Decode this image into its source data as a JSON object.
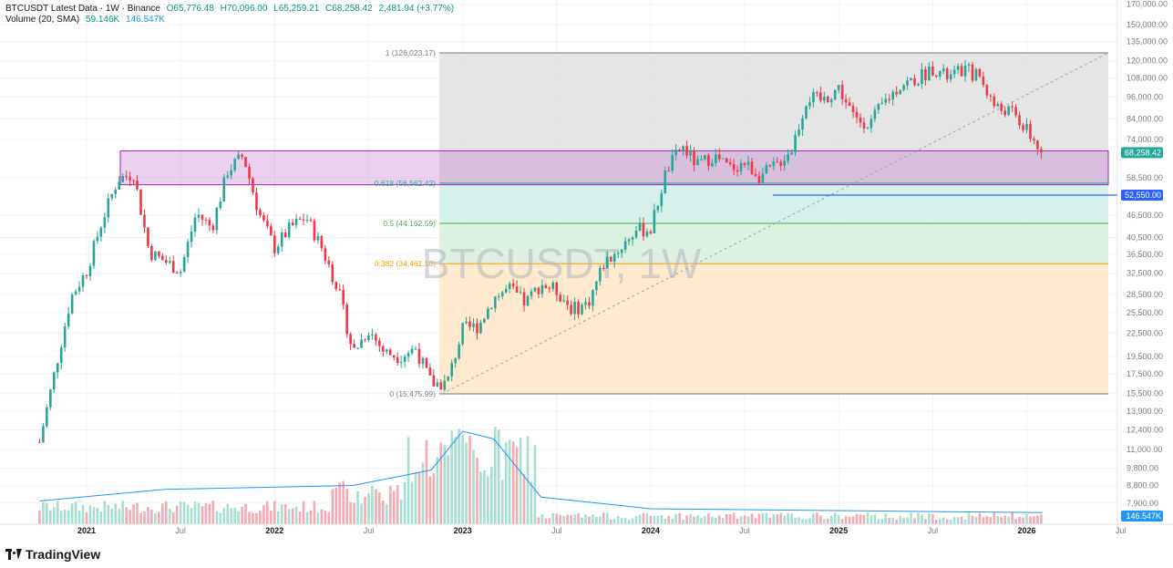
{
  "header": {
    "symbol_line": "BTCUSDT Latest Data · 1W · Binance",
    "open": "O65,776.48",
    "high": "H70,096.00",
    "low": "L65,259.21",
    "close": "C68,258.42",
    "change": "2,481.94 (+3.77%)",
    "volume_label": "Volume (20, SMA)",
    "volume_value": "59.146K",
    "volume_sma": "146.547K"
  },
  "watermark": "BTCUSDT, 1W",
  "brand": "TradingView",
  "colors": {
    "up": "#26a69a",
    "down": "#f23645",
    "sma": "#2196f3",
    "hline": "#2962ff"
  },
  "price_scale": {
    "ticks": [
      "170,000.00",
      "150,000.00",
      "135,000.00",
      "120,000.00",
      "108,000.00",
      "96,000.00",
      "84,000.00",
      "74,000.00",
      "58,500.00",
      "46,500.00",
      "40,500.00",
      "36,500.00",
      "32,500.00",
      "28,500.00",
      "25,500.00",
      "22,500.00",
      "19,500.00",
      "17,500.00",
      "15,500.00",
      "13,900.00",
      "12,400.00",
      "11,000.00",
      "9,800.00",
      "8,800.00",
      "7,900.00"
    ],
    "last_price": "68,258.42",
    "hline_price": "52,550.00",
    "volume_last": "146.547K"
  },
  "time_scale": {
    "labels": [
      {
        "t": "2021",
        "bold": true
      },
      {
        "t": "Jul",
        "bold": false
      },
      {
        "t": "2022",
        "bold": true
      },
      {
        "t": "Jul",
        "bold": false
      },
      {
        "t": "2023",
        "bold": true
      },
      {
        "t": "Jul",
        "bold": false
      },
      {
        "t": "2024",
        "bold": true
      },
      {
        "t": "Jul",
        "bold": false
      },
      {
        "t": "2025",
        "bold": true
      },
      {
        "t": "Jul",
        "bold": false
      },
      {
        "t": "2026",
        "bold": true
      },
      {
        "t": "Jul",
        "bold": false
      }
    ]
  },
  "fib": {
    "level_1": "1 (126,023.17)",
    "level_0618": "0.618 (56,562.42)",
    "level_05": "0.5 (44,162.59)",
    "level_0382": "0.382 (34,461.10)",
    "level_0": "0 (15,475.99)"
  },
  "chart_data": {
    "type": "candlestick",
    "symbol": "BTCUSDT",
    "interval": "1W",
    "exchange": "Binance",
    "scale": "log",
    "x_range": [
      "2020-10",
      "2026-07"
    ],
    "y_ticks": [
      170000,
      150000,
      135000,
      120000,
      108000,
      96000,
      84000,
      74000,
      58500,
      46500,
      40500,
      36500,
      32500,
      28500,
      25500,
      22500,
      19500,
      17500,
      15500,
      13900,
      12400,
      11000,
      9800,
      8800,
      7900
    ],
    "price_path": [
      [
        "2020-10",
        11500
      ],
      [
        "2020-11",
        18000
      ],
      [
        "2020-12",
        28000
      ],
      [
        "2021-01",
        33000
      ],
      [
        "2021-02",
        45000
      ],
      [
        "2021-03",
        58000
      ],
      [
        "2021-04",
        60000
      ],
      [
        "2021-05",
        37000
      ],
      [
        "2021-06",
        35000
      ],
      [
        "2021-07",
        33000
      ],
      [
        "2021-08",
        47000
      ],
      [
        "2021-09",
        43000
      ],
      [
        "2021-10",
        61000
      ],
      [
        "2021-11",
        67000
      ],
      [
        "2021-12",
        47000
      ],
      [
        "2022-01",
        38000
      ],
      [
        "2022-02",
        43000
      ],
      [
        "2022-03",
        46000
      ],
      [
        "2022-04",
        38000
      ],
      [
        "2022-05",
        30000
      ],
      [
        "2022-06",
        20000
      ],
      [
        "2022-07",
        23000
      ],
      [
        "2022-08",
        20000
      ],
      [
        "2022-09",
        19500
      ],
      [
        "2022-10",
        20500
      ],
      [
        "2022-11",
        16500
      ],
      [
        "2022-12",
        16500
      ],
      [
        "2023-01",
        23000
      ],
      [
        "2023-02",
        23500
      ],
      [
        "2023-03",
        28000
      ],
      [
        "2023-04",
        29500
      ],
      [
        "2023-05",
        27000
      ],
      [
        "2023-06",
        30500
      ],
      [
        "2023-07",
        29200
      ],
      [
        "2023-08",
        26000
      ],
      [
        "2023-09",
        27000
      ],
      [
        "2023-10",
        34500
      ],
      [
        "2023-11",
        37700
      ],
      [
        "2023-12",
        42300
      ],
      [
        "2024-01",
        42600
      ],
      [
        "2024-02",
        61000
      ],
      [
        "2024-03",
        71000
      ],
      [
        "2024-04",
        63000
      ],
      [
        "2024-05",
        67000
      ],
      [
        "2024-06",
        62000
      ],
      [
        "2024-07",
        64000
      ],
      [
        "2024-08",
        59000
      ],
      [
        "2024-09",
        63000
      ],
      [
        "2024-10",
        70000
      ],
      [
        "2024-11",
        96000
      ],
      [
        "2024-12",
        94000
      ],
      [
        "2025-01",
        102000
      ],
      [
        "2025-02",
        84000
      ],
      [
        "2025-03",
        82000
      ],
      [
        "2025-04",
        94000
      ],
      [
        "2025-05",
        104000
      ],
      [
        "2025-06",
        107000
      ],
      [
        "2025-07",
        115000
      ],
      [
        "2025-08",
        108000
      ],
      [
        "2025-09",
        114000
      ],
      [
        "2025-10",
        109000
      ],
      [
        "2025-11",
        90000
      ],
      [
        "2025-12",
        88000
      ],
      [
        "2026-01",
        78000
      ],
      [
        "2026-02",
        68258.42
      ]
    ],
    "last_close": 68258.42,
    "fib_retracement": [
      {
        "level": 1,
        "price": 126023.17
      },
      {
        "level": 0.618,
        "price": 56562.42
      },
      {
        "level": 0.5,
        "price": 44162.59
      },
      {
        "level": 0.382,
        "price": 34461.1
      },
      {
        "level": 0,
        "price": 15475.99
      }
    ],
    "horizontal_line": 52550.0,
    "volume": {
      "sma_period": 20,
      "last": "59.146K",
      "sma_last": "146.547K",
      "sma_path": [
        [
          "2020-10",
          0.3
        ],
        [
          "2021-06",
          0.45
        ],
        [
          "2022-06",
          0.5
        ],
        [
          "2022-11",
          0.7
        ],
        [
          "2023-01",
          1.2
        ],
        [
          "2023-03",
          1.1
        ],
        [
          "2023-06",
          0.35
        ],
        [
          "2024-01",
          0.2
        ],
        [
          "2026-02",
          0.15
        ]
      ]
    }
  }
}
